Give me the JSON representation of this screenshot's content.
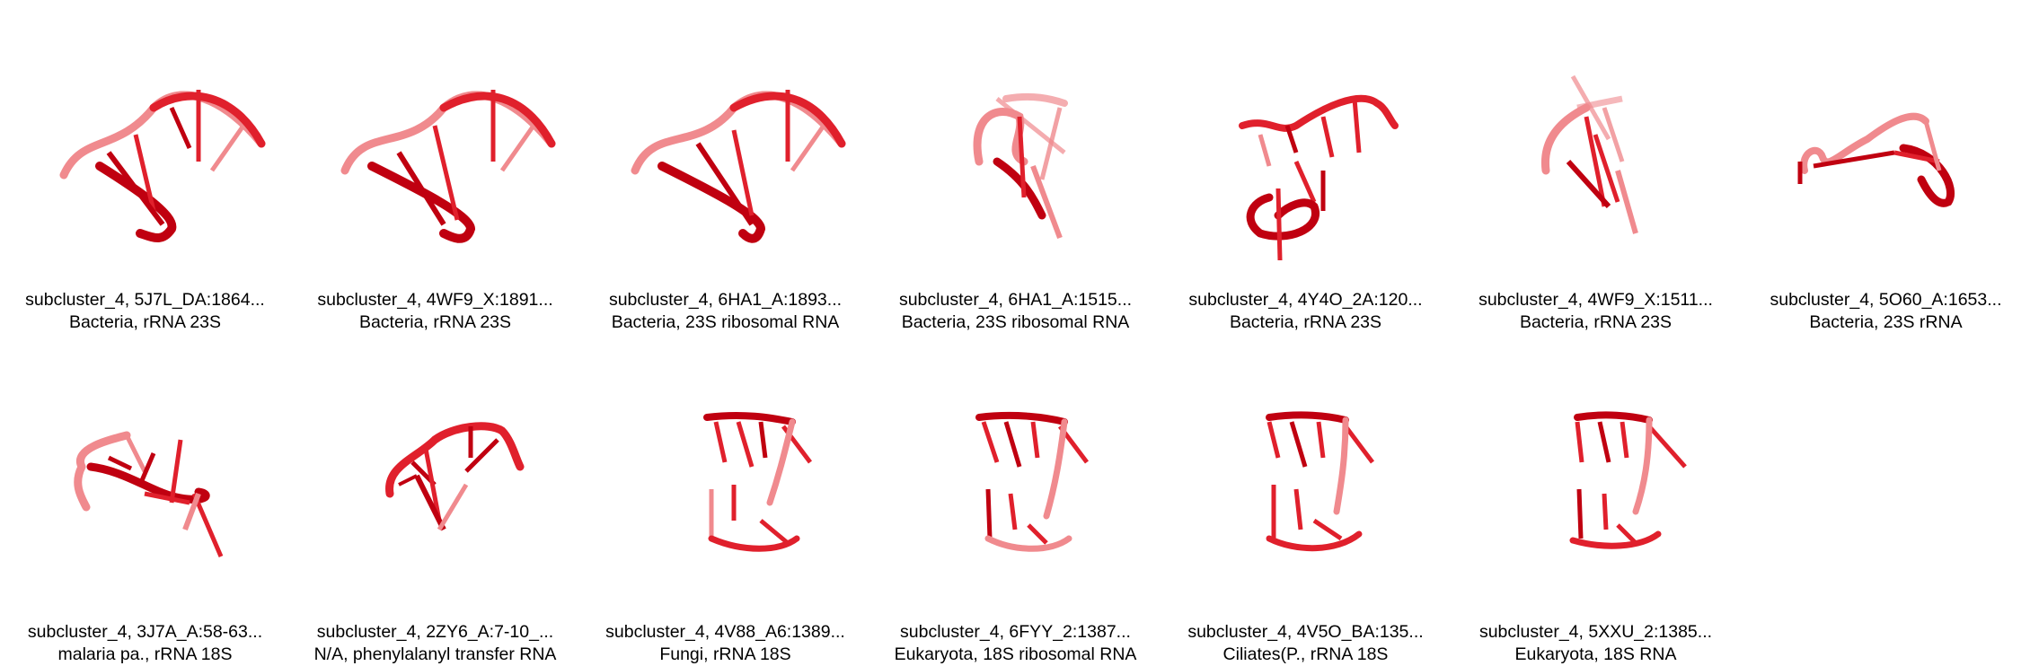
{
  "colors": {
    "strand_dark": "#c00010",
    "strand_mid": "#e0202c",
    "strand_light": "#f08a8e",
    "background": "#ffffff"
  },
  "tiles": [
    {
      "line1": "subcluster_4, 5J7L_DA:1864...",
      "line2": "Bacteria, rRNA 23S",
      "icon": "rna-structure-3d"
    },
    {
      "line1": "subcluster_4, 4WF9_X:1891...",
      "line2": "Bacteria, rRNA 23S",
      "icon": "rna-structure-3d"
    },
    {
      "line1": "subcluster_4, 6HA1_A:1893...",
      "line2": "Bacteria, 23S ribosomal RNA",
      "icon": "rna-structure-3d"
    },
    {
      "line1": "subcluster_4, 6HA1_A:1515...",
      "line2": "Bacteria, 23S ribosomal RNA",
      "icon": "rna-structure-3d"
    },
    {
      "line1": "subcluster_4, 4Y4O_2A:120...",
      "line2": "Bacteria, rRNA 23S",
      "icon": "rna-structure-3d"
    },
    {
      "line1": "subcluster_4, 4WF9_X:1511...",
      "line2": "Bacteria, rRNA 23S",
      "icon": "rna-structure-3d"
    },
    {
      "line1": "subcluster_4, 5O60_A:1653...",
      "line2": "Bacteria, 23S rRNA",
      "icon": "rna-structure-3d"
    },
    {
      "line1": "subcluster_4, 3J7A_A:58-63...",
      "line2": "malaria pa., rRNA 18S",
      "icon": "rna-structure-3d"
    },
    {
      "line1": "subcluster_4, 2ZY6_A:7-10_...",
      "line2": "N/A, phenylalanyl transfer RNA",
      "icon": "rna-structure-3d"
    },
    {
      "line1": "subcluster_4, 4V88_A6:1389...",
      "line2": "Fungi, rRNA 18S",
      "icon": "rna-structure-3d"
    },
    {
      "line1": "subcluster_4, 6FYY_2:1387...",
      "line2": "Eukaryota, 18S ribosomal RNA",
      "icon": "rna-structure-3d"
    },
    {
      "line1": "subcluster_4, 4V5O_BA:135...",
      "line2": "Ciliates(P., rRNA 18S",
      "icon": "rna-structure-3d"
    },
    {
      "line1": "subcluster_4, 5XXU_2:1385...",
      "line2": "Eukaryota, 18S RNA",
      "icon": "rna-structure-3d"
    }
  ]
}
